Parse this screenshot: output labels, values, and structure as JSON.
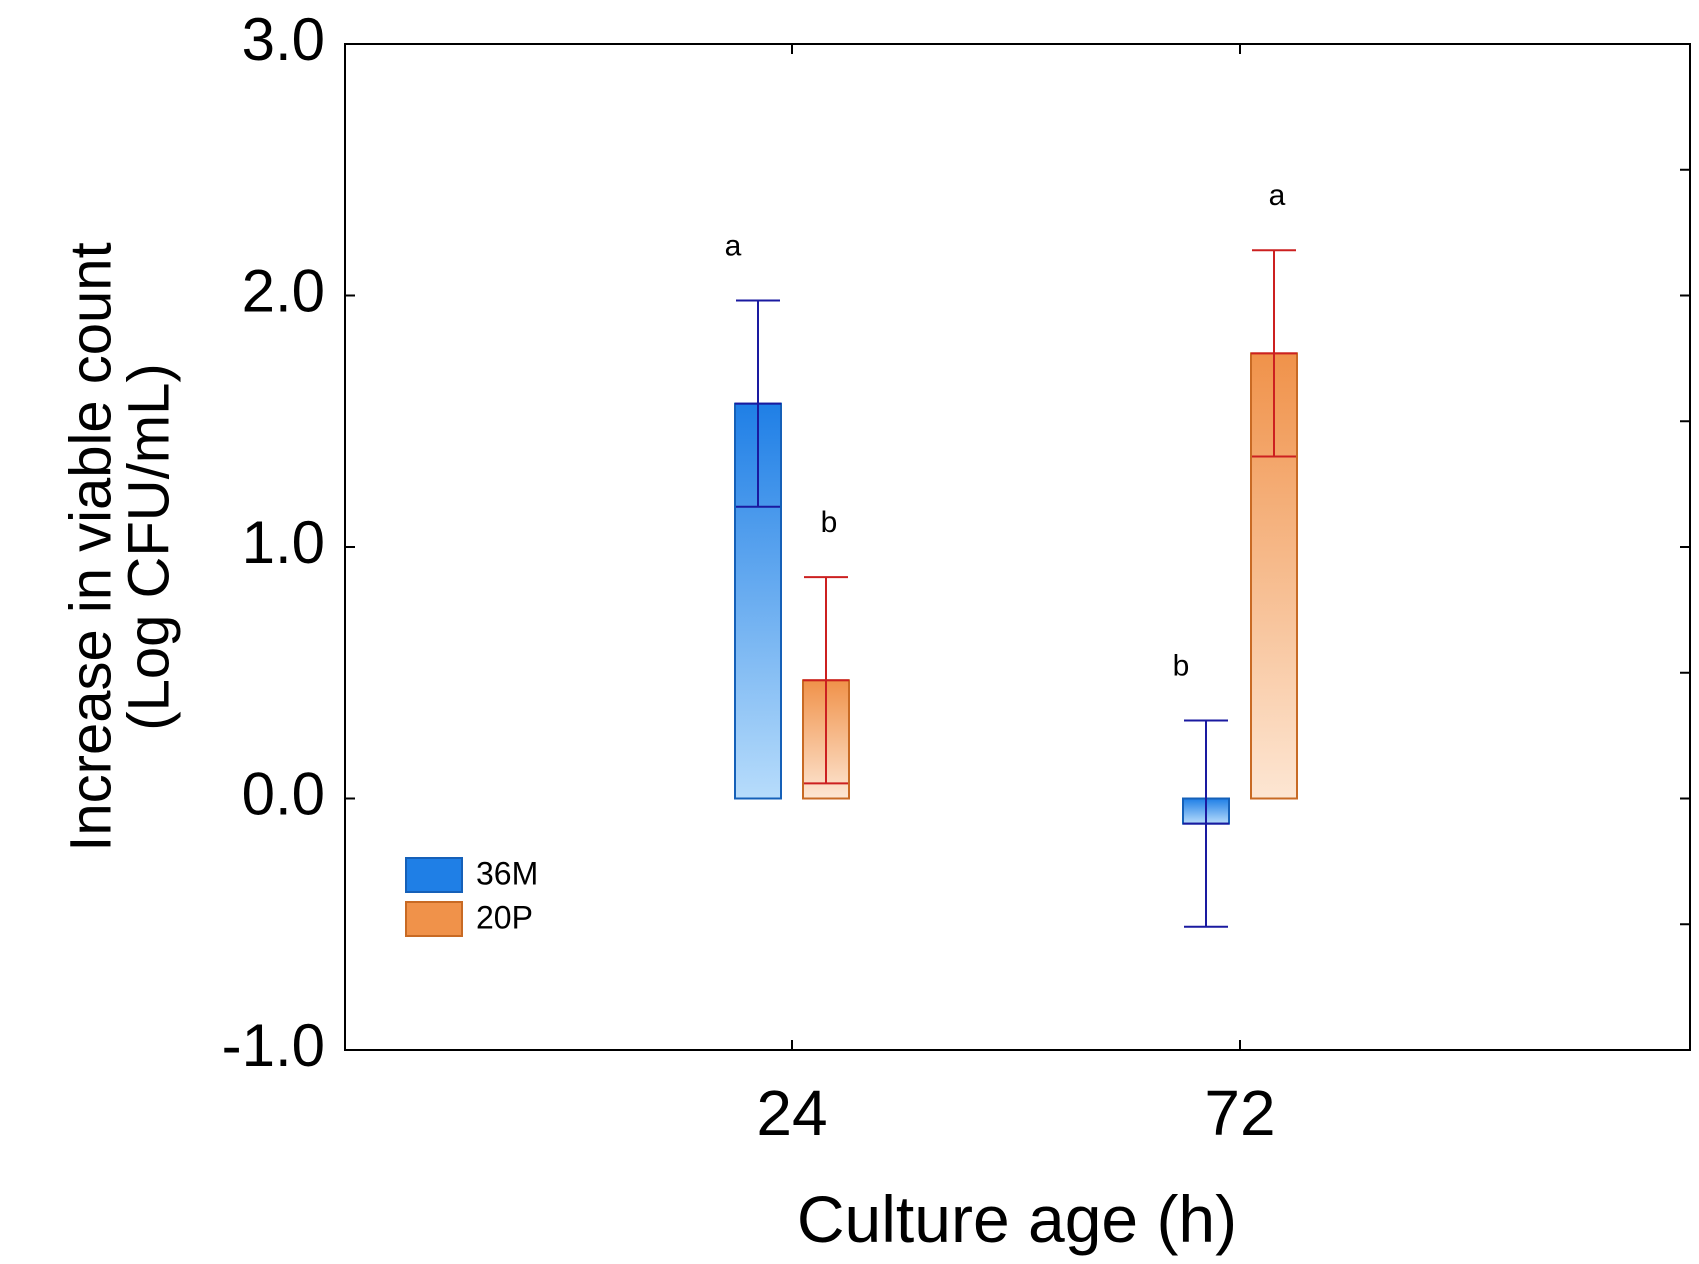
{
  "chart_data": {
    "type": "bar",
    "xlabel": "Culture age (h)",
    "ylabel_lines": [
      "Increase in viable count",
      "(Log CFU/mL)"
    ],
    "categories": [
      "24",
      "72"
    ],
    "ylim": [
      -1.0,
      3.0
    ],
    "yticks": [
      -1.0,
      0.0,
      1.0,
      2.0,
      3.0
    ],
    "ytick_labels": [
      "-1.0",
      "0.0",
      "1.0",
      "2.0",
      "3.0"
    ],
    "grid": false,
    "legend_position": "bottom-left",
    "series": [
      {
        "name": "36M",
        "color": "#1f7fe6",
        "color_light": "#b7dcfb",
        "error_color": "#1a1aa0",
        "values": [
          1.57,
          -0.1
        ],
        "error": [
          0.41,
          0.41
        ],
        "letters": [
          "a",
          "b"
        ]
      },
      {
        "name": "20P",
        "color": "#f0924a",
        "color_light": "#fde6d3",
        "error_color": "#cc2020",
        "values": [
          0.47,
          1.77
        ],
        "error": [
          0.41,
          0.41
        ],
        "letters": [
          "b",
          "a"
        ]
      }
    ]
  }
}
